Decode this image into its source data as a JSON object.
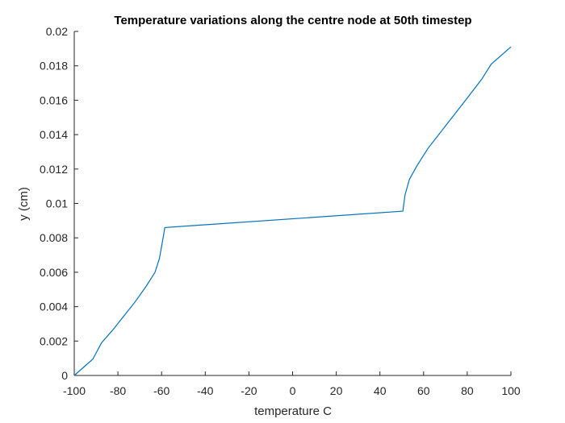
{
  "chart_data": {
    "type": "line",
    "title": "Temperature variations along the centre node at 50th timestep",
    "xlabel": "temperature C",
    "ylabel": "y (cm)",
    "xlim": [
      -100,
      100
    ],
    "ylim": [
      0,
      0.02
    ],
    "xticks": [
      -100,
      -80,
      -60,
      -40,
      -20,
      0,
      20,
      40,
      60,
      80,
      100
    ],
    "xtick_labels": [
      "-100",
      "-80",
      "-60",
      "-40",
      "-20",
      "0",
      "20",
      "40",
      "60",
      "80",
      "100"
    ],
    "yticks": [
      0,
      0.002,
      0.004,
      0.006,
      0.008,
      0.01,
      0.012,
      0.014,
      0.016,
      0.018,
      0.02
    ],
    "ytick_labels": [
      "0",
      "0.002",
      "0.004",
      "0.006",
      "0.008",
      "0.01",
      "0.012",
      "0.014",
      "0.016",
      "0.018",
      "0.02"
    ],
    "grid": false,
    "series": [
      {
        "color": "#0072BD",
        "x": [
          -100,
          -91.5,
          -87.5,
          -82,
          -77,
          -72,
          -67,
          -63,
          -61,
          -60,
          -58.5,
          50.5,
          51.5,
          53.5,
          57,
          62,
          70,
          78,
          86.5,
          91,
          100
        ],
        "y": [
          0,
          0.00095,
          0.0019,
          0.0027,
          0.0035,
          0.0043,
          0.0052,
          0.006,
          0.0068,
          0.0075,
          0.0086,
          0.00955,
          0.0105,
          0.0114,
          0.0122,
          0.0132,
          0.0145,
          0.0158,
          0.0172,
          0.0181,
          0.0191
        ]
      }
    ]
  }
}
